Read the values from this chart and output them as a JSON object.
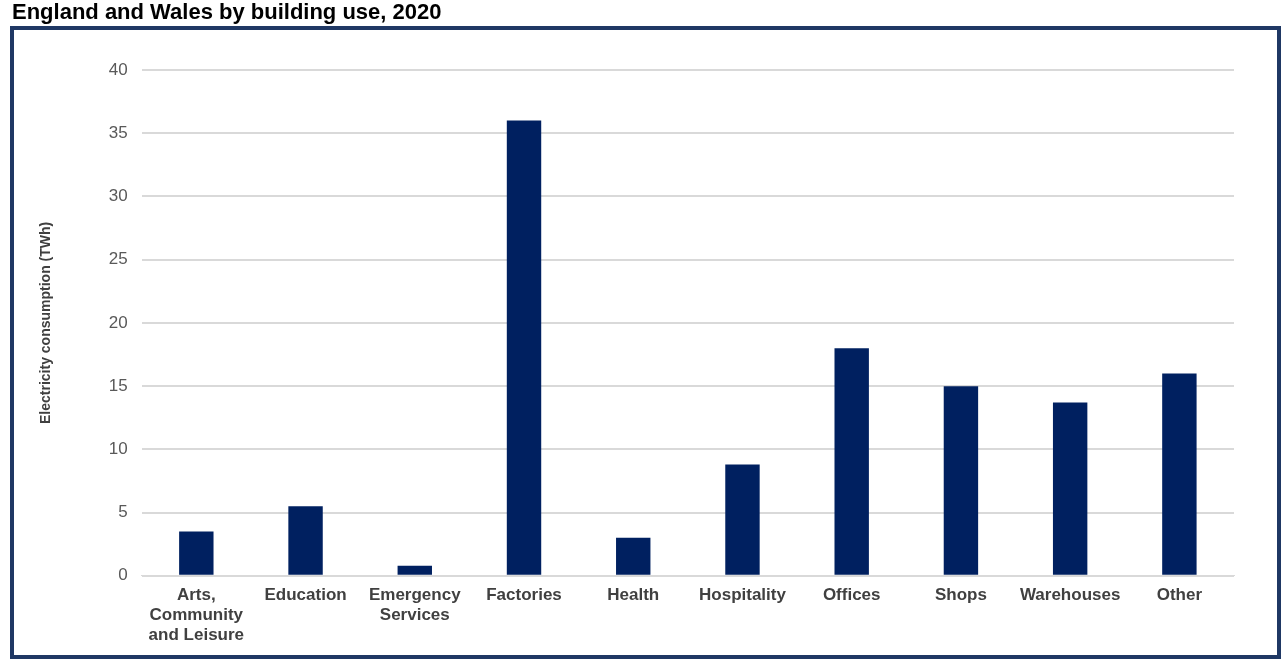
{
  "chart_data": {
    "type": "bar",
    "title": "England and Wales by building use, 2020",
    "ylabel": "Electricity consumption (TWh)",
    "categories": [
      "Arts, Community and Leisure",
      "Education",
      "Emergency Services",
      "Factories",
      "Health",
      "Hospitality",
      "Offices",
      "Shops",
      "Warehouses",
      "Other"
    ],
    "values": [
      3.5,
      5.5,
      0.8,
      36,
      3.0,
      8.8,
      18,
      15.0,
      13.7,
      16
    ],
    "color": "#002060",
    "ylim": [
      0,
      40
    ],
    "yticks": [
      0,
      5,
      10,
      15,
      20,
      25,
      30,
      35,
      40
    ],
    "grid": "y",
    "legend": false
  }
}
